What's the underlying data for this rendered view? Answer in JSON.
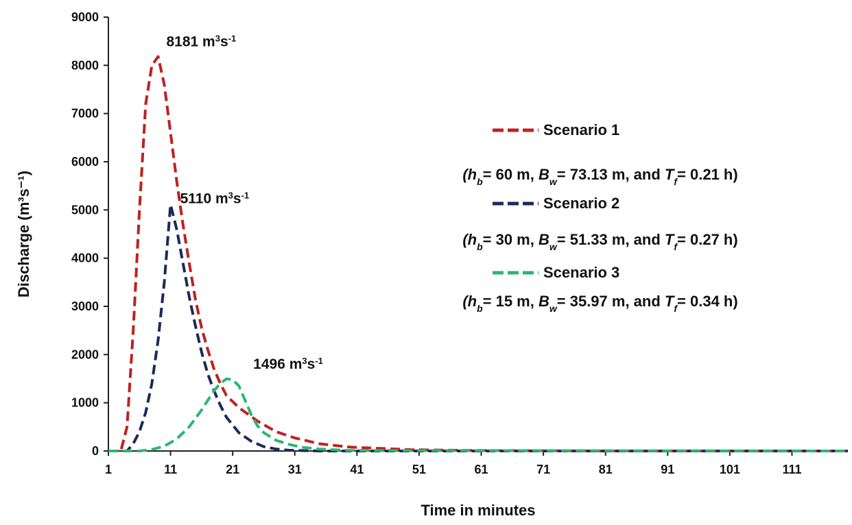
{
  "chart_data": {
    "type": "line",
    "xlabel": "Time in minutes",
    "ylabel": "Discharge (m³s⁻¹)",
    "ylim": [
      0,
      9000
    ],
    "xlim": [
      1,
      120
    ],
    "yticks": [
      "0",
      "1000",
      "2000",
      "3000",
      "4000",
      "5000",
      "6000",
      "7000",
      "8000",
      "9000"
    ],
    "xticks": [
      "1",
      "11",
      "21",
      "31",
      "41",
      "51",
      "61",
      "71",
      "81",
      "91",
      "101",
      "111"
    ],
    "grid": false,
    "legend_position": "right",
    "series": [
      {
        "name": "Scenario 1",
        "color": "#c0201e",
        "parameters": [
          "(h",
          "b",
          "= 60 m, ",
          "B",
          "w",
          "= 73.13 m, and ",
          "T",
          "f",
          "= 0.21 h)"
        ],
        "x": [
          1,
          3,
          4,
          5,
          6,
          7,
          8,
          9,
          10,
          11,
          12,
          13,
          14,
          15,
          16,
          17,
          18,
          19,
          20,
          22,
          25,
          28,
          31,
          35,
          40,
          50,
          60,
          80,
          100,
          120
        ],
        "y": [
          0,
          0,
          500,
          2500,
          5000,
          7200,
          8000,
          8181,
          7600,
          6600,
          5600,
          4700,
          3900,
          3150,
          2550,
          2100,
          1700,
          1400,
          1150,
          900,
          620,
          400,
          270,
          150,
          80,
          25,
          10,
          0,
          0,
          0
        ]
      },
      {
        "name": "Scenario 2",
        "color": "#1b2a5a",
        "parameters": [
          "(h",
          "b",
          "= 30 m, ",
          "B",
          "w",
          "= 51.33 m, and ",
          "T",
          "f",
          "= 0.27 h)"
        ],
        "x": [
          1,
          4,
          5,
          6,
          7,
          8,
          9,
          10,
          11,
          12,
          13,
          14,
          15,
          16,
          17,
          18,
          19,
          20,
          22,
          24,
          26,
          28,
          30,
          35,
          40,
          120
        ],
        "y": [
          0,
          0,
          150,
          400,
          800,
          1400,
          2300,
          3500,
          5110,
          4600,
          3900,
          3200,
          2600,
          2050,
          1600,
          1250,
          950,
          700,
          380,
          200,
          90,
          40,
          15,
          0,
          0,
          0
        ]
      },
      {
        "name": "Scenario 3",
        "color": "#2bb673",
        "parameters": [
          "(h",
          "b",
          "= 15 m, ",
          "B",
          "w",
          "= 35.97 m, and ",
          "T",
          "f",
          "= 0.34 h)"
        ],
        "x": [
          1,
          6,
          8,
          10,
          12,
          14,
          16,
          17,
          18,
          19,
          20,
          21,
          22,
          23,
          24,
          25,
          26,
          28,
          30,
          32,
          35,
          40,
          120
        ],
        "y": [
          0,
          0,
          30,
          100,
          250,
          500,
          850,
          1050,
          1250,
          1400,
          1496,
          1480,
          1350,
          1050,
          750,
          520,
          380,
          220,
          140,
          80,
          40,
          10,
          0
        ]
      }
    ],
    "annotations": [
      {
        "value": "8181",
        "unit_a": " m",
        "sup1": "3",
        "unit_b": "s",
        "sup2": "-1",
        "x": 9,
        "y": 8181
      },
      {
        "value": "5110",
        "unit_a": " m",
        "sup1": "3",
        "unit_b": "s",
        "sup2": "-1",
        "x": 11,
        "y": 5110
      },
      {
        "value": "1496",
        "unit_a": " m",
        "sup1": "3",
        "unit_b": "s",
        "sup2": "-1",
        "x": 21,
        "y": 1496
      }
    ]
  }
}
